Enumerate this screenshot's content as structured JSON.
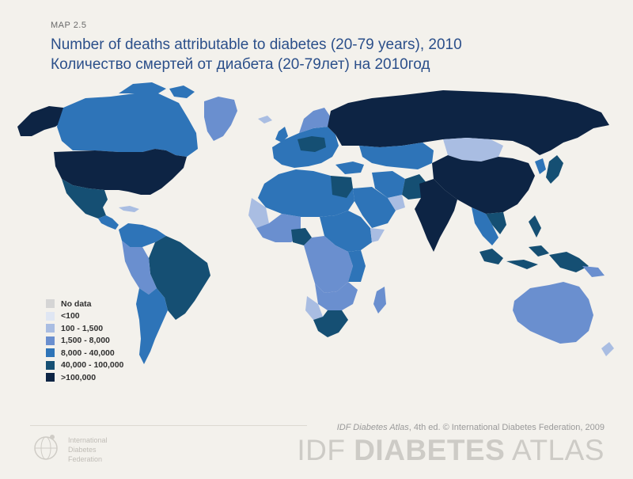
{
  "header": {
    "map_label": "MAP 2.5",
    "title_en": "Number of deaths attributable to diabetes (20-79 years), 2010",
    "title_ru": "Количество смертей от диабета (20-79лет) на 2010год"
  },
  "legend": {
    "items": [
      {
        "label": "No data",
        "color": "#d5d5d5"
      },
      {
        "label": "<100",
        "color": "#dfe6f3"
      },
      {
        "label": "100 - 1,500",
        "color": "#a9bde2"
      },
      {
        "label": "1,500 - 8,000",
        "color": "#6a8fcf"
      },
      {
        "label": "8,000 - 40,000",
        "color": "#2e74b8"
      },
      {
        "label": "40,000 - 100,000",
        "color": "#154f73"
      },
      {
        "label": ">100,000",
        "color": "#0d2444"
      }
    ]
  },
  "footer": {
    "credit_italic": "IDF Diabetes Atlas",
    "credit_rest": ", 4th ed.  © International Diabetes Federation, 2009",
    "logo_idf": "IDF ",
    "logo_bold": "DIABETES",
    "logo_atlas": " ATLAS",
    "org_line1": "International",
    "org_line2": "Diabetes",
    "org_line3": "Federation"
  },
  "regions": [
    {
      "name": "greenland",
      "class": "1,500 - 8,000"
    },
    {
      "name": "canada",
      "class": "8,000 - 40,000"
    },
    {
      "name": "alaska",
      "class": ">100,000"
    },
    {
      "name": "usa",
      "class": ">100,000"
    },
    {
      "name": "mexico",
      "class": "40,000 - 100,000"
    },
    {
      "name": "brazil",
      "class": "40,000 - 100,000"
    },
    {
      "name": "russia",
      "class": ">100,000"
    },
    {
      "name": "china",
      "class": ">100,000"
    },
    {
      "name": "india",
      "class": ">100,000"
    },
    {
      "name": "mongolia",
      "class": "100 - 1,500"
    },
    {
      "name": "australia",
      "class": "1,500 - 8,000"
    },
    {
      "name": "south-africa",
      "class": "40,000 - 100,000"
    },
    {
      "name": "egypt",
      "class": "40,000 - 100,000"
    },
    {
      "name": "nigeria",
      "class": "40,000 - 100,000"
    },
    {
      "name": "indonesia",
      "class": "40,000 - 100,000"
    }
  ]
}
